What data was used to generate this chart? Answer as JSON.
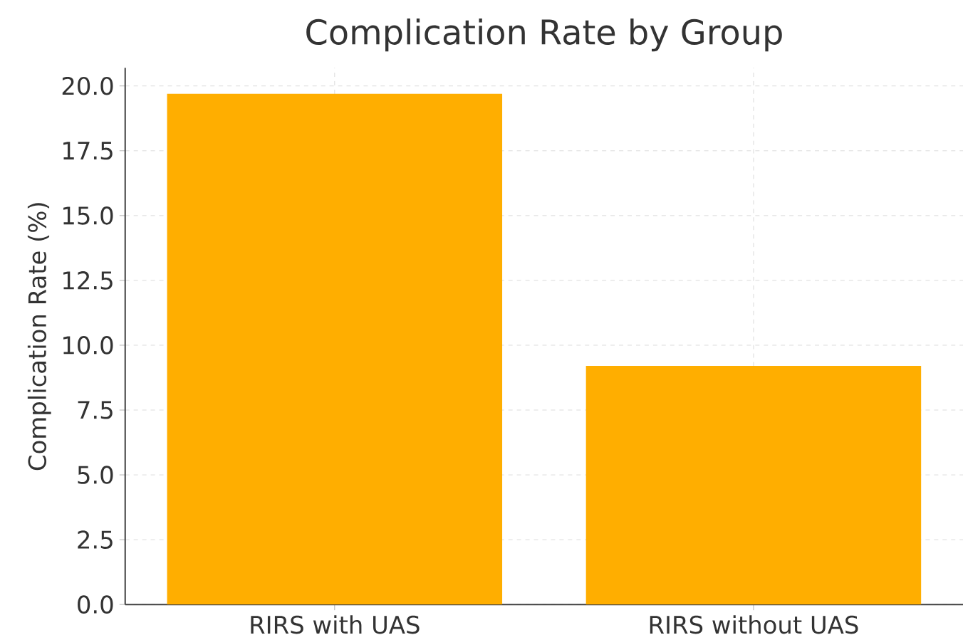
{
  "chart_data": {
    "type": "bar",
    "title": "Complication Rate by Group",
    "ylabel": "Complication Rate (%)",
    "categories": [
      "RIRS with UAS",
      "RIRS without UAS"
    ],
    "values": [
      19.7,
      9.2
    ],
    "color": "#ffae00",
    "ylim": [
      0,
      20.7
    ],
    "yticks": [
      {
        "value": 0,
        "label": "0.0"
      },
      {
        "value": 2.5,
        "label": "2.5"
      },
      {
        "value": 5,
        "label": "5.0"
      },
      {
        "value": 7.5,
        "label": "7.5"
      },
      {
        "value": 10,
        "label": "10.0"
      },
      {
        "value": 12.5,
        "label": "12.5"
      },
      {
        "value": 15,
        "label": "15.0"
      },
      {
        "value": 17.5,
        "label": "17.5"
      },
      {
        "value": 20,
        "label": "20.0"
      }
    ],
    "grid": true
  }
}
